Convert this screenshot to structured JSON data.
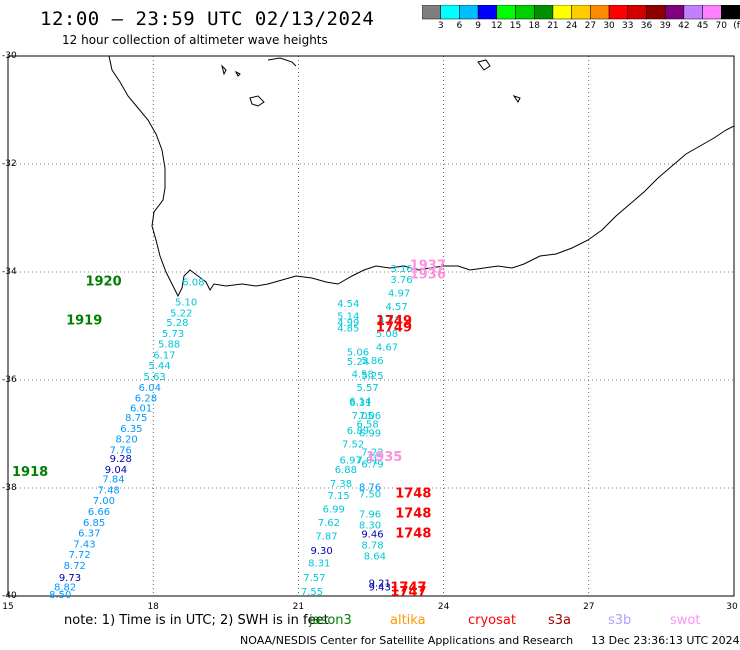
{
  "header": {
    "title": "12:00 – 23:59 UTC 02/13/2024",
    "subtitle": "12 hour collection of altimeter wave heights"
  },
  "colorbar": {
    "colors": [
      "#7f7f7f",
      "#00ffff",
      "#00bfff",
      "#0000ff",
      "#00ff00",
      "#00d000",
      "#009000",
      "#ffff00",
      "#ffcc00",
      "#ff8c00",
      "#ff0000",
      "#d00000",
      "#900000",
      "#800080",
      "#c080ff",
      "#ff80ff",
      "#000000"
    ],
    "labels": [
      "3",
      "6",
      "9",
      "12",
      "15",
      "18",
      "21",
      "24",
      "27",
      "30",
      "33",
      "36",
      "39",
      "42",
      "45",
      "70",
      "(ft)"
    ]
  },
  "axes": {
    "x_ticks": [
      "15",
      "18",
      "21",
      "24",
      "27",
      "30"
    ],
    "y_ticks": [
      "-30",
      "-32",
      "-34",
      "-36",
      "-38",
      "-40"
    ],
    "lon_range": [
      15,
      30
    ],
    "lat_range": [
      -40,
      -30
    ]
  },
  "colors": {
    "cyan": "#00c8d8",
    "blue": "#0098ff",
    "navy": "#0000b0",
    "green": "#008000",
    "red": "#ff0000",
    "pink": "#ff90e0",
    "jason": "#008000",
    "altika": "#ff9900",
    "cryosat": "#ff0000",
    "s3a": "#a00000",
    "s3b": "#b0a0ff",
    "swot": "#ff90ff"
  },
  "chart_data": {
    "type": "scatter",
    "x_label": "",
    "y_label": "",
    "xlim": [
      15,
      30
    ],
    "ylim": [
      -40,
      -30
    ],
    "time_labels": [
      {
        "text": "1920",
        "lon": 16.6,
        "lat": -34.25,
        "color": "green"
      },
      {
        "text": "1919",
        "lon": 16.2,
        "lat": -34.97,
        "color": "green"
      },
      {
        "text": "1918",
        "lon": 14.4,
        "lat": -37.78,
        "color": "green"
      },
      {
        "text": "1937",
        "lon": 23.3,
        "lat": -33.95,
        "color": "pink"
      },
      {
        "text": "1936",
        "lon": 23.3,
        "lat": -34.12,
        "color": "pink"
      },
      {
        "text": "1749",
        "lon": 22.6,
        "lat": -34.98,
        "color": "red"
      },
      {
        "text": "1749",
        "lon": 22.6,
        "lat": -35.1,
        "color": "red"
      },
      {
        "text": "1935",
        "lon": 22.4,
        "lat": -37.5,
        "color": "pink"
      },
      {
        "text": "1748",
        "lon": 23.0,
        "lat": -38.18,
        "color": "red"
      },
      {
        "text": "1748",
        "lon": 23.0,
        "lat": -38.55,
        "color": "red"
      },
      {
        "text": "1748",
        "lon": 23.0,
        "lat": -38.92,
        "color": "red"
      },
      {
        "text": "1747",
        "lon": 22.9,
        "lat": -39.92,
        "color": "red"
      },
      {
        "text": "1747",
        "lon": 22.9,
        "lat": -40.0,
        "color": "red"
      }
    ],
    "points": [
      {
        "v": "6.08",
        "lon": 18.6,
        "lat": -34.25,
        "color": "cyan"
      },
      {
        "v": "5.10",
        "lon": 18.45,
        "lat": -34.62,
        "color": "cyan"
      },
      {
        "v": "5.22",
        "lon": 18.35,
        "lat": -34.82,
        "color": "cyan"
      },
      {
        "v": "5.28",
        "lon": 18.27,
        "lat": -35.0,
        "color": "cyan"
      },
      {
        "v": "5.73",
        "lon": 18.18,
        "lat": -35.2,
        "color": "cyan"
      },
      {
        "v": "5.88",
        "lon": 18.1,
        "lat": -35.4,
        "color": "cyan"
      },
      {
        "v": "6.17",
        "lon": 18.0,
        "lat": -35.6,
        "color": "cyan"
      },
      {
        "v": "5.44",
        "lon": 17.9,
        "lat": -35.8,
        "color": "cyan"
      },
      {
        "v": "5.63",
        "lon": 17.8,
        "lat": -36.0,
        "color": "cyan"
      },
      {
        "v": "6.04",
        "lon": 17.7,
        "lat": -36.2,
        "color": "blue"
      },
      {
        "v": "6.28",
        "lon": 17.62,
        "lat": -36.4,
        "color": "blue"
      },
      {
        "v": "6.01",
        "lon": 17.52,
        "lat": -36.58,
        "color": "blue"
      },
      {
        "v": "8.75",
        "lon": 17.42,
        "lat": -36.76,
        "color": "blue"
      },
      {
        "v": "6.35",
        "lon": 17.32,
        "lat": -36.96,
        "color": "blue"
      },
      {
        "v": "8.20",
        "lon": 17.22,
        "lat": -37.16,
        "color": "blue"
      },
      {
        "v": "9.28",
        "lon": 17.1,
        "lat": -37.52,
        "color": "navy"
      },
      {
        "v": "9.04",
        "lon": 17.0,
        "lat": -37.72,
        "color": "navy"
      },
      {
        "v": "7.76",
        "lon": 17.1,
        "lat": -37.36,
        "color": "blue"
      },
      {
        "v": "7.84",
        "lon": 16.95,
        "lat": -37.9,
        "color": "blue"
      },
      {
        "v": "7.48",
        "lon": 16.85,
        "lat": -38.1,
        "color": "blue"
      },
      {
        "v": "7.00",
        "lon": 16.75,
        "lat": -38.3,
        "color": "blue"
      },
      {
        "v": "6.66",
        "lon": 16.65,
        "lat": -38.5,
        "color": "blue"
      },
      {
        "v": "6.85",
        "lon": 16.55,
        "lat": -38.7,
        "color": "blue"
      },
      {
        "v": "6.37",
        "lon": 16.45,
        "lat": -38.9,
        "color": "blue"
      },
      {
        "v": "7.43",
        "lon": 16.35,
        "lat": -39.1,
        "color": "blue"
      },
      {
        "v": "7.72",
        "lon": 16.25,
        "lat": -39.3,
        "color": "blue"
      },
      {
        "v": "8.72",
        "lon": 16.15,
        "lat": -39.5,
        "color": "blue"
      },
      {
        "v": "9.73",
        "lon": 16.05,
        "lat": -39.72,
        "color": "navy"
      },
      {
        "v": "8.82",
        "lon": 15.95,
        "lat": -39.9,
        "color": "blue"
      },
      {
        "v": "8.50",
        "lon": 15.85,
        "lat": -40.1,
        "color": "blue"
      },
      {
        "v": "3.16",
        "lon": 22.9,
        "lat": -34.0,
        "color": "cyan"
      },
      {
        "v": "3.76",
        "lon": 22.9,
        "lat": -34.2,
        "color": "cyan"
      },
      {
        "v": "4.97",
        "lon": 22.85,
        "lat": -34.45,
        "color": "cyan"
      },
      {
        "v": "4.57",
        "lon": 22.8,
        "lat": -34.7,
        "color": "cyan"
      },
      {
        "v": "4.54",
        "lon": 21.8,
        "lat": -34.65,
        "color": "cyan"
      },
      {
        "v": "5.14",
        "lon": 21.8,
        "lat": -34.88,
        "color": "cyan"
      },
      {
        "v": "4.99",
        "lon": 21.8,
        "lat": -35.0,
        "color": "cyan"
      },
      {
        "v": "4.85",
        "lon": 21.8,
        "lat": -35.1,
        "color": "cyan"
      },
      {
        "v": "4.73",
        "lon": 22.65,
        "lat": -34.95,
        "color": "cyan"
      },
      {
        "v": "5.08",
        "lon": 22.6,
        "lat": -35.2,
        "color": "cyan"
      },
      {
        "v": "4.67",
        "lon": 22.6,
        "lat": -35.45,
        "color": "cyan"
      },
      {
        "v": "5.06",
        "lon": 22.0,
        "lat": -35.55,
        "color": "cyan"
      },
      {
        "v": "5.86",
        "lon": 22.3,
        "lat": -35.7,
        "color": "cyan"
      },
      {
        "v": "5.24",
        "lon": 22.0,
        "lat": -35.72,
        "color": "cyan"
      },
      {
        "v": "4.58",
        "lon": 22.1,
        "lat": -35.95,
        "color": "cyan"
      },
      {
        "v": "5.25",
        "lon": 22.3,
        "lat": -35.98,
        "color": "cyan"
      },
      {
        "v": "5.57",
        "lon": 22.2,
        "lat": -36.2,
        "color": "cyan"
      },
      {
        "v": "6.14",
        "lon": 22.05,
        "lat": -36.45,
        "color": "cyan"
      },
      {
        "v": "6.31",
        "lon": 22.05,
        "lat": -36.48,
        "color": "cyan"
      },
      {
        "v": "7.05",
        "lon": 22.1,
        "lat": -36.72,
        "color": "cyan"
      },
      {
        "v": "7.06",
        "lon": 22.25,
        "lat": -36.72,
        "color": "cyan"
      },
      {
        "v": "6.58",
        "lon": 22.2,
        "lat": -36.88,
        "color": "cyan"
      },
      {
        "v": "6.89",
        "lon": 22.0,
        "lat": -37.0,
        "color": "cyan"
      },
      {
        "v": "6.99",
        "lon": 22.25,
        "lat": -37.05,
        "color": "cyan"
      },
      {
        "v": "7.52",
        "lon": 21.9,
        "lat": -37.25,
        "color": "cyan"
      },
      {
        "v": "7.22",
        "lon": 22.3,
        "lat": -37.4,
        "color": "cyan"
      },
      {
        "v": "6.97",
        "lon": 21.85,
        "lat": -37.55,
        "color": "cyan"
      },
      {
        "v": "7.01",
        "lon": 22.2,
        "lat": -37.55,
        "color": "cyan"
      },
      {
        "v": "6.79",
        "lon": 22.3,
        "lat": -37.62,
        "color": "cyan"
      },
      {
        "v": "6.88",
        "lon": 21.75,
        "lat": -37.72,
        "color": "cyan"
      },
      {
        "v": "7.38",
        "lon": 21.65,
        "lat": -37.98,
        "color": "cyan"
      },
      {
        "v": "7.15",
        "lon": 21.6,
        "lat": -38.2,
        "color": "cyan"
      },
      {
        "v": "8.76",
        "lon": 22.25,
        "lat": -38.05,
        "color": "blue"
      },
      {
        "v": "7.50",
        "lon": 22.25,
        "lat": -38.18,
        "color": "cyan"
      },
      {
        "v": "6.99",
        "lon": 21.5,
        "lat": -38.45,
        "color": "cyan"
      },
      {
        "v": "7.96",
        "lon": 22.25,
        "lat": -38.55,
        "color": "cyan"
      },
      {
        "v": "7.62",
        "lon": 21.4,
        "lat": -38.7,
        "color": "cyan"
      },
      {
        "v": "8.30",
        "lon": 22.25,
        "lat": -38.75,
        "color": "cyan"
      },
      {
        "v": "9.46",
        "lon": 22.3,
        "lat": -38.92,
        "color": "navy"
      },
      {
        "v": "7.87",
        "lon": 21.35,
        "lat": -38.95,
        "color": "cyan"
      },
      {
        "v": "8.78",
        "lon": 22.3,
        "lat": -39.12,
        "color": "cyan"
      },
      {
        "v": "9.30",
        "lon": 21.25,
        "lat": -39.22,
        "color": "navy"
      },
      {
        "v": "8.64",
        "lon": 22.35,
        "lat": -39.32,
        "color": "cyan"
      },
      {
        "v": "8.31",
        "lon": 21.2,
        "lat": -39.45,
        "color": "cyan"
      },
      {
        "v": "7.57",
        "lon": 21.1,
        "lat": -39.72,
        "color": "cyan"
      },
      {
        "v": "9.21",
        "lon": 22.45,
        "lat": -39.82,
        "color": "navy"
      },
      {
        "v": "9.43",
        "lon": 22.45,
        "lat": -39.9,
        "color": "navy"
      },
      {
        "v": "7.55",
        "lon": 21.05,
        "lat": -39.98,
        "color": "cyan"
      }
    ]
  },
  "legend": {
    "note": "note:  1) Time is in UTC;  2) SWH is in feet",
    "satellites": [
      {
        "name": "jason3",
        "color": "jason"
      },
      {
        "name": "altika",
        "color": "altika"
      },
      {
        "name": "cryosat",
        "color": "cryosat"
      },
      {
        "name": "s3a",
        "color": "s3a"
      },
      {
        "name": "s3b",
        "color": "s3b"
      },
      {
        "name": "swot",
        "color": "swot"
      }
    ]
  },
  "footer": {
    "credit": "NOAA/NESDIS Center for Satellite Applications and Research",
    "timestamp": "13 Dec 23:36:13 UTC 2024"
  }
}
